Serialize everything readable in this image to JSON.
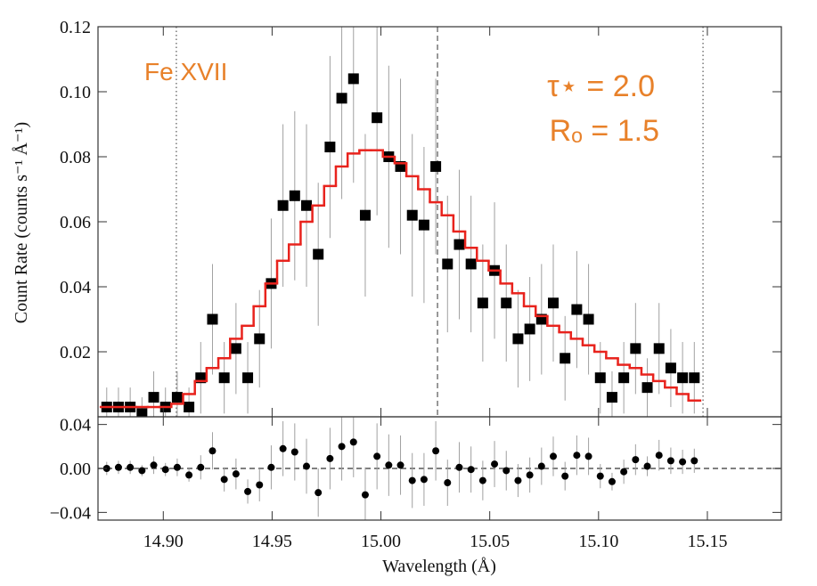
{
  "chart_data": [
    {
      "type": "scatter",
      "ylabel": "Count Rate (counts s⁻¹ Å⁻¹)",
      "annotations": [
        "Fe XVII",
        "τ⋆ = 2.0",
        "Rₒ = 1.5"
      ],
      "annotation_color": "#e8812a",
      "xlim": [
        14.87,
        15.184
      ],
      "ylim": [
        0,
        0.12
      ],
      "yticks": [
        {
          "value": 0.02,
          "label": "0.02"
        },
        {
          "value": 0.04,
          "label": "0.04"
        },
        {
          "value": 0.06,
          "label": "0.06"
        },
        {
          "value": 0.08,
          "label": "0.08"
        },
        {
          "value": 0.1,
          "label": "0.10"
        },
        {
          "value": 0.12,
          "label": "0.12"
        }
      ],
      "vlines": [
        {
          "value": 14.906,
          "style": "dotted"
        },
        {
          "value": 15.026,
          "style": "dashed"
        },
        {
          "value": 15.148,
          "style": "dotted"
        }
      ],
      "x": [
        14.874,
        14.8794,
        14.8848,
        14.8902,
        14.8956,
        14.901,
        14.9064,
        14.9118,
        14.9172,
        14.9226,
        14.928,
        14.9334,
        14.9388,
        14.9442,
        14.9496,
        14.955,
        14.9604,
        14.9658,
        14.9712,
        14.9766,
        14.982,
        14.9874,
        14.9928,
        14.9982,
        15.0036,
        15.009,
        15.0144,
        15.0198,
        15.0252,
        15.0306,
        15.036,
        15.0414,
        15.0468,
        15.0522,
        15.0576,
        15.063,
        15.0684,
        15.0738,
        15.0792,
        15.0846,
        15.09,
        15.0954,
        15.1008,
        15.1062,
        15.1116,
        15.117,
        15.1224,
        15.1278,
        15.1332,
        15.1386,
        15.144
      ],
      "series": [
        {
          "marker": "square",
          "color": "#000000",
          "error_color": "#a0a0a0",
          "values": [
            0.003,
            0.003,
            0.003,
            0.001,
            0.006,
            0.003,
            0.006,
            0.003,
            0.012,
            0.03,
            0.012,
            0.021,
            0.012,
            0.024,
            0.041,
            0.065,
            0.068,
            0.065,
            0.05,
            0.083,
            0.098,
            0.104,
            0.062,
            0.092,
            0.08,
            0.077,
            0.062,
            0.059,
            0.077,
            0.047,
            0.053,
            0.047,
            0.035,
            0.045,
            0.035,
            0.024,
            0.027,
            0.03,
            0.035,
            0.018,
            0.033,
            0.03,
            0.012,
            0.006,
            0.012,
            0.021,
            0.009,
            0.021,
            0.015,
            0.012,
            0.012
          ],
          "errors": [
            0.006,
            0.006,
            0.006,
            0.005,
            0.008,
            0.006,
            0.008,
            0.006,
            0.011,
            0.017,
            0.011,
            0.014,
            0.011,
            0.015,
            0.02,
            0.025,
            0.026,
            0.025,
            0.022,
            0.028,
            0.031,
            0.032,
            0.025,
            0.03,
            0.028,
            0.027,
            0.025,
            0.024,
            0.027,
            0.021,
            0.023,
            0.021,
            0.018,
            0.021,
            0.018,
            0.015,
            0.016,
            0.017,
            0.018,
            0.013,
            0.018,
            0.017,
            0.011,
            0.008,
            0.011,
            0.014,
            0.009,
            0.014,
            0.012,
            0.011,
            0.011
          ]
        },
        {
          "marker": "step",
          "color": "#e8231d",
          "values": [
            0.003,
            0.003,
            0.003,
            0.003,
            0.003,
            0.003,
            0.004,
            0.007,
            0.011,
            0.015,
            0.018,
            0.024,
            0.028,
            0.034,
            0.041,
            0.048,
            0.053,
            0.06,
            0.065,
            0.071,
            0.077,
            0.081,
            0.082,
            0.082,
            0.08,
            0.078,
            0.074,
            0.07,
            0.066,
            0.062,
            0.057,
            0.052,
            0.048,
            0.045,
            0.041,
            0.038,
            0.034,
            0.031,
            0.028,
            0.026,
            0.024,
            0.022,
            0.02,
            0.018,
            0.016,
            0.015,
            0.013,
            0.011,
            0.009,
            0.007,
            0.005
          ]
        }
      ]
    },
    {
      "type": "scatter",
      "xlabel": "Wavelength (Å)",
      "ylim": [
        -0.047,
        0.047
      ],
      "yticks": [
        {
          "value": -0.04,
          "label": "−0.04"
        },
        {
          "value": 0,
          "label": "0.00"
        },
        0.04
      ],
      "xticks": [
        {
          "value": 14.9,
          "label": "14.90"
        },
        14.95,
        {
          "value": 15,
          "label": "15.00"
        },
        15.05,
        {
          "value": 15.1,
          "label": "15.10"
        },
        15.15
      ],
      "hline": {
        "value": 0,
        "style": "dashed"
      },
      "series": [
        {
          "marker": "circle",
          "color": "#000000",
          "error_color": "#a0a0a0",
          "values": [
            0,
            0.001,
            0.001,
            -0.002,
            0.003,
            -0.001,
            0.001,
            -0.006,
            0.001,
            0.016,
            -0.01,
            -0.005,
            -0.021,
            -0.015,
            0.001,
            0.018,
            0.015,
            0.002,
            -0.022,
            0.009,
            0.02,
            0.024,
            -0.024,
            0.011,
            0.003,
            0.003,
            -0.011,
            -0.01,
            0.016,
            -0.013,
            0.001,
            -0.001,
            -0.011,
            0.004,
            -0.002,
            -0.011,
            -0.006,
            0.002,
            0.011,
            -0.007,
            0.012,
            0.011,
            -0.007,
            -0.012,
            -0.003,
            0.008,
            0.002,
            0.012,
            0.007,
            0.006,
            0.007
          ]
        }
      ]
    }
  ]
}
